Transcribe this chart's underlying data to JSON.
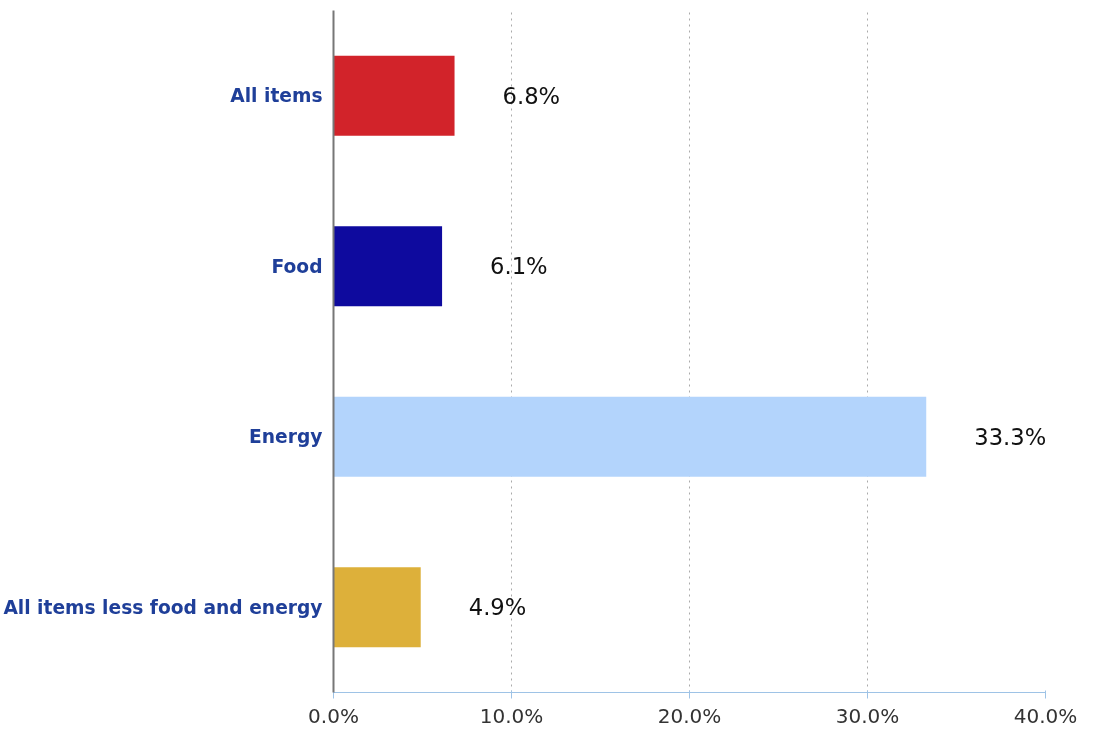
{
  "chart_data": {
    "type": "bar",
    "orientation": "horizontal",
    "categories": [
      "All items",
      "Food",
      "Energy",
      "All items less food and energy"
    ],
    "values": [
      6.8,
      6.1,
      33.3,
      4.9
    ],
    "colors": [
      "#d2232a",
      "#0e0a9e",
      "#b3d4fc",
      "#ddb03a"
    ],
    "value_labels": [
      "6.8%",
      "6.1%",
      "33.3%",
      "4.9%"
    ],
    "xlim": [
      0,
      40
    ],
    "xticks": [
      {
        "value": 0,
        "label": "0.0%"
      },
      {
        "value": 10,
        "label": "10.0%"
      },
      {
        "value": 20,
        "label": "20.0%"
      },
      {
        "value": 30,
        "label": "30.0%"
      },
      {
        "value": 40,
        "label": "40.0%"
      }
    ],
    "grid": "x"
  }
}
